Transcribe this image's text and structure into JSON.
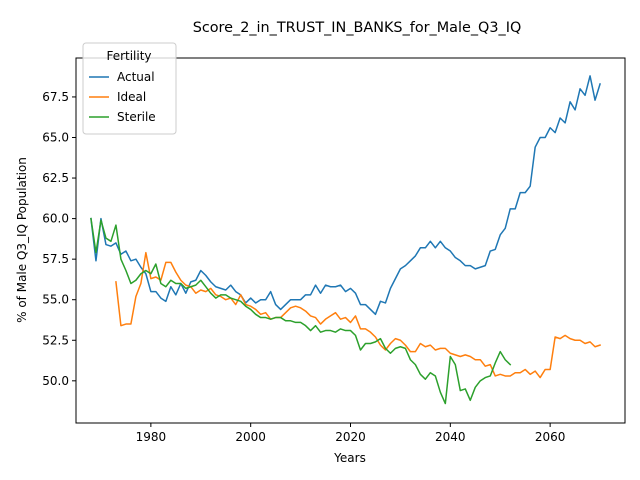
{
  "chart_data": {
    "type": "line",
    "title": "Score_2_in_TRUST_IN_BANKS_for_Male_Q3_IQ",
    "xlabel": "Years",
    "ylabel": "% of Male Q3_IQ Population",
    "xlim": [
      1965,
      2075
    ],
    "ylim": [
      47.4,
      69.9
    ],
    "xticks": [
      1980,
      2000,
      2020,
      2040,
      2060
    ],
    "yticks": [
      50.0,
      52.5,
      55.0,
      57.5,
      60.0,
      62.5,
      65.0,
      67.5
    ],
    "grid": false,
    "legend": {
      "title": "Fertility",
      "placement": "top-left"
    },
    "series": [
      {
        "name": "Actual",
        "color": "#1f77b4",
        "x": [
          1968,
          1969,
          1970,
          1971,
          1972,
          1973,
          1974,
          1975,
          1976,
          1977,
          1978,
          1979,
          1980,
          1981,
          1982,
          1983,
          1984,
          1985,
          1986,
          1987,
          1988,
          1989,
          1990,
          1991,
          1992,
          1993,
          1994,
          1995,
          1996,
          1997,
          1998,
          1999,
          2000,
          2001,
          2002,
          2003,
          2004,
          2005,
          2006,
          2007,
          2008,
          2009,
          2010,
          2011,
          2012,
          2013,
          2014,
          2015,
          2016,
          2017,
          2018,
          2019,
          2020,
          2021,
          2022,
          2023,
          2024,
          2025,
          2026,
          2027,
          2028,
          2029,
          2030,
          2031,
          2032,
          2033,
          2034,
          2035,
          2036,
          2037,
          2038,
          2039,
          2040,
          2041,
          2042,
          2043,
          2044,
          2045,
          2046,
          2047,
          2048,
          2049,
          2050,
          2051,
          2052,
          2053,
          2054,
          2055,
          2056,
          2057,
          2058,
          2059,
          2060,
          2061,
          2062,
          2063,
          2064,
          2065,
          2066,
          2067,
          2068,
          2069,
          2070
        ],
        "values": [
          60.0,
          57.4,
          60.0,
          58.4,
          58.3,
          58.5,
          57.8,
          58.0,
          57.4,
          57.5,
          57.0,
          56.6,
          55.5,
          55.5,
          55.1,
          54.9,
          55.8,
          55.3,
          56.0,
          55.4,
          56.1,
          56.2,
          56.8,
          56.5,
          56.1,
          55.8,
          55.7,
          55.6,
          55.9,
          55.5,
          55.3,
          54.8,
          55.1,
          54.8,
          55.0,
          55.0,
          55.5,
          54.7,
          54.4,
          54.7,
          55.0,
          55.0,
          55.0,
          55.3,
          55.3,
          55.9,
          55.4,
          55.9,
          55.8,
          55.8,
          55.9,
          55.5,
          55.7,
          55.4,
          54.7,
          54.7,
          54.4,
          54.1,
          54.9,
          54.8,
          55.7,
          56.3,
          56.9,
          57.1,
          57.4,
          57.7,
          58.2,
          58.2,
          58.6,
          58.2,
          58.6,
          58.2,
          58.0,
          57.6,
          57.4,
          57.1,
          57.1,
          56.9,
          57.0,
          57.1,
          58.0,
          58.1,
          59.0,
          59.4,
          60.6,
          60.6,
          61.6,
          61.6,
          62.0,
          64.4,
          65.0,
          65.0,
          65.6,
          65.3,
          66.2,
          65.9,
          67.2,
          66.7,
          68.0,
          67.6,
          68.8,
          67.3,
          68.3
        ]
      },
      {
        "name": "Ideal",
        "color": "#ff7f0e",
        "x": [
          1973,
          1974,
          1975,
          1976,
          1977,
          1978,
          1979,
          1980,
          1981,
          1982,
          1983,
          1984,
          1985,
          1986,
          1987,
          1988,
          1989,
          1990,
          1991,
          1992,
          1993,
          1994,
          1995,
          1996,
          1997,
          1998,
          1999,
          2000,
          2001,
          2002,
          2003,
          2004,
          2005,
          2006,
          2007,
          2008,
          2009,
          2010,
          2011,
          2012,
          2013,
          2014,
          2015,
          2016,
          2017,
          2018,
          2019,
          2020,
          2021,
          2022,
          2023,
          2024,
          2025,
          2026,
          2027,
          2028,
          2029,
          2030,
          2031,
          2032,
          2033,
          2034,
          2035,
          2036,
          2037,
          2038,
          2039,
          2040,
          2041,
          2042,
          2043,
          2044,
          2045,
          2046,
          2047,
          2048,
          2049,
          2050,
          2051,
          2052,
          2053,
          2054,
          2055,
          2056,
          2057,
          2058,
          2059,
          2060,
          2061,
          2062,
          2063,
          2064,
          2065,
          2066,
          2067,
          2068,
          2069,
          2070
        ],
        "values": [
          56.1,
          53.4,
          53.5,
          53.5,
          55.2,
          56.0,
          57.9,
          56.3,
          56.4,
          56.2,
          57.3,
          57.3,
          56.7,
          56.2,
          55.9,
          55.8,
          55.4,
          55.6,
          55.5,
          55.7,
          55.3,
          55.2,
          55.0,
          55.1,
          54.7,
          55.3,
          54.7,
          54.6,
          54.4,
          54.1,
          54.2,
          53.8,
          53.9,
          53.9,
          54.2,
          54.5,
          54.6,
          54.5,
          54.3,
          54.0,
          53.9,
          53.5,
          53.8,
          54.0,
          54.2,
          53.8,
          53.9,
          53.6,
          54.0,
          53.2,
          53.2,
          53.0,
          52.7,
          52.2,
          51.9,
          52.3,
          52.6,
          52.5,
          52.2,
          51.8,
          51.8,
          52.3,
          52.1,
          52.2,
          51.9,
          52.0,
          52.0,
          51.7,
          51.6,
          51.5,
          51.6,
          51.5,
          51.3,
          51.3,
          50.9,
          51.0,
          50.3,
          50.4,
          50.3,
          50.3,
          50.5,
          50.5,
          50.7,
          50.4,
          50.6,
          50.2,
          50.7,
          50.7,
          52.7,
          52.6,
          52.8,
          52.6,
          52.5,
          52.5,
          52.3,
          52.4,
          52.1,
          52.2
        ]
      },
      {
        "name": "Sterile",
        "color": "#2ca02c",
        "x": [
          1968,
          1969,
          1970,
          1971,
          1972,
          1973,
          1974,
          1975,
          1976,
          1977,
          1978,
          1979,
          1980,
          1981,
          1982,
          1983,
          1984,
          1985,
          1986,
          1987,
          1988,
          1989,
          1990,
          1991,
          1992,
          1993,
          1994,
          1995,
          1996,
          1997,
          1998,
          1999,
          2000,
          2001,
          2002,
          2003,
          2004,
          2005,
          2006,
          2007,
          2008,
          2009,
          2010,
          2011,
          2012,
          2013,
          2014,
          2015,
          2016,
          2017,
          2018,
          2019,
          2020,
          2021,
          2022,
          2023,
          2024,
          2025,
          2026,
          2027,
          2028,
          2029,
          2030,
          2031,
          2032,
          2033,
          2034,
          2035,
          2036,
          2037,
          2038,
          2039,
          2040,
          2041,
          2042,
          2043,
          2044,
          2045,
          2046,
          2047,
          2048,
          2049,
          2050,
          2051,
          2052
        ],
        "values": [
          60.0,
          57.9,
          59.9,
          58.8,
          58.6,
          59.6,
          57.5,
          56.8,
          56.0,
          56.2,
          56.6,
          56.8,
          56.6,
          57.2,
          56.0,
          55.8,
          56.2,
          56.0,
          56.0,
          55.7,
          55.8,
          55.9,
          56.2,
          55.8,
          55.4,
          55.1,
          55.3,
          55.3,
          55.1,
          55.0,
          54.9,
          54.6,
          54.4,
          54.1,
          53.9,
          53.9,
          53.8,
          53.9,
          53.9,
          53.7,
          53.7,
          53.6,
          53.6,
          53.4,
          53.1,
          53.4,
          53.0,
          53.1,
          53.1,
          53.0,
          53.2,
          53.1,
          53.1,
          52.8,
          51.9,
          52.3,
          52.3,
          52.4,
          52.6,
          52.0,
          51.7,
          52.0,
          52.1,
          52.0,
          51.3,
          51.0,
          50.4,
          50.1,
          50.5,
          50.3,
          49.3,
          48.6,
          51.5,
          51.0,
          49.4,
          49.5,
          48.8,
          49.6,
          50.0,
          50.2,
          50.3,
          51.1,
          51.8,
          51.3,
          51.0
        ]
      }
    ]
  }
}
